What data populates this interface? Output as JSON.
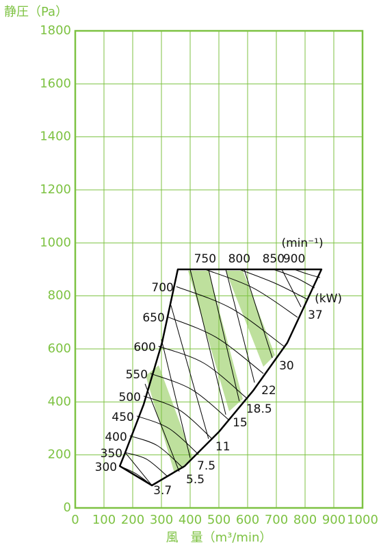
{
  "chart_data": {
    "type": "line",
    "y_label": "静圧（Pa）",
    "x_label": "風　量（m³/min）",
    "speed_unit": "(min⁻¹)",
    "power_unit": "(kW)",
    "xlim": [
      0,
      1000
    ],
    "xticks": [
      0,
      100,
      200,
      300,
      400,
      500,
      600,
      700,
      800,
      900,
      1000
    ],
    "ylim": [
      0,
      1800
    ],
    "yticks": [
      0,
      200,
      400,
      600,
      800,
      1000,
      1200,
      1400,
      1600,
      1800
    ],
    "grid": true,
    "grid_color": "#7dc242",
    "curve_color": "#000000",
    "band_color": "#a8d67c",
    "envelope": {
      "x": [
        155,
        174,
        238,
        302,
        357,
        857,
        738,
        619,
        500,
        381,
        267,
        155
      ],
      "y": [
        158,
        209,
        390,
        623,
        900,
        900,
        623,
        442,
        287,
        158,
        85,
        158
      ]
    },
    "speed_curves": [
      {
        "name": "300",
        "x": [
          155,
          210,
          267
        ],
        "y": [
          158,
          130,
          85
        ]
      },
      {
        "name": "350",
        "x": [
          174,
          248,
          321
        ],
        "y": [
          209,
          184,
          119
        ]
      },
      {
        "name": "400",
        "x": [
          190,
          286,
          376
        ],
        "y": [
          272,
          235,
          150
        ]
      },
      {
        "name": "450",
        "x": [
          214,
          326,
          429
        ],
        "y": [
          347,
          300,
          202
        ]
      },
      {
        "name": "500",
        "x": [
          238,
          362,
          476
        ],
        "y": [
          422,
          370,
          261
        ]
      },
      {
        "name": "550",
        "x": [
          262,
          405,
          536
        ],
        "y": [
          507,
          447,
          331
        ]
      },
      {
        "name": "600",
        "x": [
          290,
          448,
          595
        ],
        "y": [
          610,
          546,
          416
        ]
      },
      {
        "name": "650",
        "x": [
          321,
          490,
          655
        ],
        "y": [
          721,
          644,
          507
        ]
      },
      {
        "name": "700",
        "x": [
          352,
          543,
          726
        ],
        "y": [
          835,
          753,
          610
        ]
      },
      {
        "name": "750",
        "x": [
          452,
          619,
          774
        ],
        "y": [
          900,
          830,
          719
        ]
      },
      {
        "name": "800",
        "x": [
          571,
          695,
          810
        ],
        "y": [
          900,
          848,
          786
        ]
      },
      {
        "name": "850",
        "x": [
          690,
          767,
          833
        ],
        "y": [
          900,
          869,
          830
        ]
      },
      {
        "name": "900",
        "x": [
          762,
          810,
          852
        ],
        "y": [
          900,
          882,
          869
        ]
      }
    ],
    "power_lines": [
      {
        "name": "3.7",
        "x": [
          267,
          174
        ],
        "y": [
          85,
          209
        ]
      },
      {
        "name": "5.5",
        "x": [
          362,
          243
        ],
        "y": [
          137,
          468
        ]
      },
      {
        "name": "7.5",
        "x": [
          400,
          300
        ],
        "y": [
          189,
          636
        ]
      },
      {
        "name": "11",
        "x": [
          464,
          333
        ],
        "y": [
          261,
          765
        ]
      },
      {
        "name": "15",
        "x": [
          524,
          400
        ],
        "y": [
          352,
          900
        ]
      },
      {
        "name": "18.5",
        "x": [
          571,
          464
        ],
        "y": [
          403,
          900
        ]
      },
      {
        "name": "22",
        "x": [
          624,
          524
        ],
        "y": [
          473,
          900
        ]
      },
      {
        "name": "30",
        "x": [
          686,
          588
        ],
        "y": [
          566,
          900
        ]
      },
      {
        "name": "37",
        "x": [
          786,
          719
        ],
        "y": [
          758,
          900
        ]
      }
    ]
  }
}
